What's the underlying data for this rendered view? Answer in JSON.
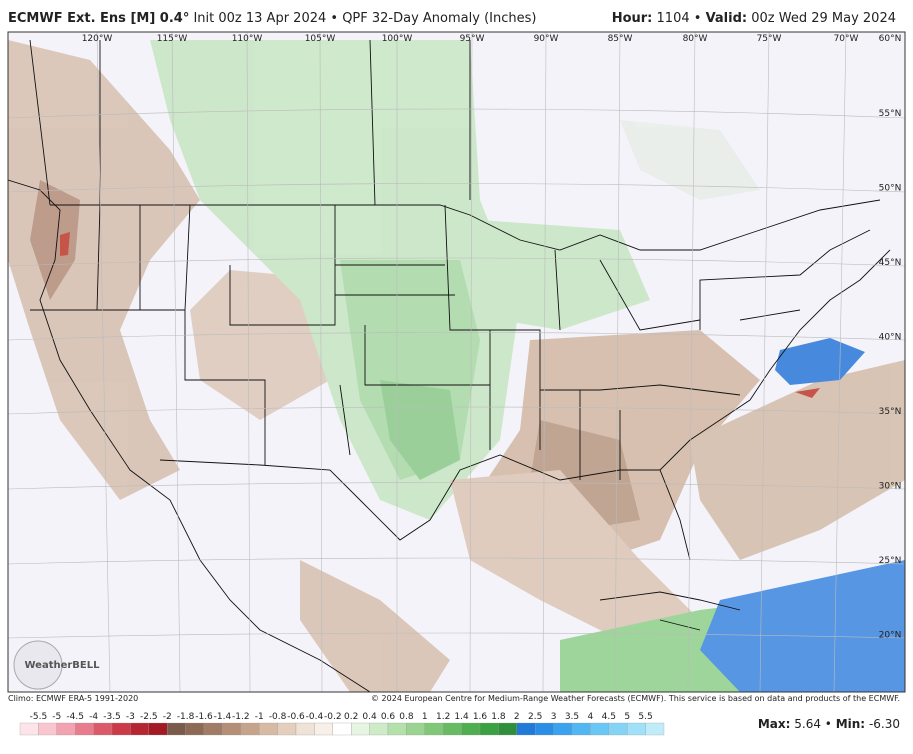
{
  "header": {
    "model": "ECMWF Ext. Ens [M] 0.4°",
    "init": "Init 00z 13 Apr 2024 • QPF 32-Day Anomaly (Inches)",
    "hour_label": "Hour:",
    "hour": "1104 •",
    "valid_label": "Valid:",
    "valid": "00z Wed 29 May 2024"
  },
  "map": {
    "lon_labels": [
      "120°W",
      "115°W",
      "110°W",
      "105°W",
      "100°W",
      "95°W",
      "90°W",
      "85°W",
      "80°W",
      "75°W",
      "70°W"
    ],
    "corner_label": "60°N",
    "lat_labels": [
      "55°N",
      "50°N",
      "45°N",
      "40°N",
      "35°N",
      "30°N",
      "25°N",
      "20°N"
    ],
    "logo": "WeatherBELL"
  },
  "footer": {
    "climo": "Climo: ECMWF ERA-5 1991-2020",
    "copyright": "© 2024 European Centre for Medium-Range Weather Forecasts (ECMWF). This service is based on data and products of the ECMWF.",
    "max_label": "Max:",
    "max": "5.64",
    "min_label": "Min:",
    "min": "-6.30"
  },
  "colorbar": {
    "labels": [
      "-5.5",
      "-5",
      "-4.5",
      "-4",
      "-3.5",
      "-3",
      "-2.5",
      "-2",
      "-1.8",
      "-1.6",
      "-1.4",
      "-1.2",
      "-1",
      "-0.8",
      "-0.6",
      "-0.4",
      "-0.2",
      "0.2",
      "0.4",
      "0.6",
      "0.8",
      "1",
      "1.2",
      "1.4",
      "1.6",
      "1.8",
      "2",
      "2.5",
      "3",
      "3.5",
      "4",
      "4.5",
      "5",
      "5.5"
    ]
  }
}
